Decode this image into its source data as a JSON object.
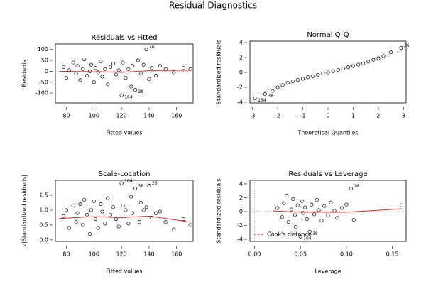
{
  "title": "Residual Diagnostics",
  "chart_data": [
    {
      "type": "scatter",
      "title": "Residuals vs Fitted",
      "x_label": "Fitted values",
      "y_label": "Residuals",
      "xlim": [
        72,
        172
      ],
      "ylim": [
        -145,
        125
      ],
      "xticks": [
        80,
        100,
        120,
        140,
        160
      ],
      "yticks": [
        -100,
        -50,
        0,
        50,
        100
      ],
      "hlines": [
        0
      ],
      "x": [
        78,
        80,
        82,
        85,
        87,
        88,
        90,
        92,
        93,
        95,
        97,
        98,
        100,
        101,
        103,
        105,
        106,
        108,
        110,
        112,
        114,
        116,
        118,
        120,
        121,
        123,
        125,
        127,
        128,
        130,
        132,
        134,
        138,
        136,
        140,
        142,
        145,
        148,
        152,
        158,
        165,
        170
      ],
      "y": [
        20,
        -30,
        5,
        40,
        -10,
        25,
        -40,
        10,
        55,
        -20,
        0,
        30,
        -50,
        15,
        -5,
        45,
        -25,
        10,
        -60,
        20,
        35,
        -15,
        5,
        -110,
        40,
        -30,
        10,
        -70,
        25,
        -85,
        50,
        -10,
        100,
        30,
        -35,
        15,
        -20,
        25,
        10,
        -5,
        15,
        10
      ],
      "lowess": {
        "x": [
          75,
          100,
          120,
          140,
          170
        ],
        "y": [
          0,
          -2,
          -5,
          3,
          5
        ]
      },
      "annotations": [
        {
          "text": "26",
          "x": 138,
          "y": 100
        },
        {
          "text": "164",
          "x": 120,
          "y": -110
        },
        {
          "text": "38",
          "x": 130,
          "y": -85
        }
      ]
    },
    {
      "type": "scatter",
      "title": "Normal Q-Q",
      "x_label": "Theoretical Quantiles",
      "y_label": "Standardized residuals",
      "xlim": [
        -3.1,
        3.1
      ],
      "ylim": [
        -4.1,
        4.2
      ],
      "xticks": [
        -3,
        -2,
        -1,
        0,
        1,
        2,
        3
      ],
      "yticks": [
        -4,
        -2,
        0,
        2,
        4
      ],
      "x": [
        -2.9,
        -2.5,
        -2.2,
        -2.0,
        -1.8,
        -1.6,
        -1.4,
        -1.2,
        -1.0,
        -0.8,
        -0.6,
        -0.4,
        -0.2,
        0,
        0.2,
        0.4,
        0.6,
        0.8,
        1.0,
        1.2,
        1.4,
        1.6,
        1.8,
        2.0,
        2.2,
        2.5,
        2.9
      ],
      "y": [
        -3.5,
        -2.9,
        -2.5,
        -2.0,
        -1.7,
        -1.4,
        -1.2,
        -1.0,
        -0.85,
        -0.65,
        -0.5,
        -0.33,
        -0.15,
        0,
        0.17,
        0.35,
        0.52,
        0.7,
        0.85,
        1.05,
        1.2,
        1.45,
        1.7,
        1.9,
        2.2,
        2.7,
        3.3
      ],
      "ref_line": {
        "x": [
          -3.1,
          3.1
        ],
        "y": [
          -3.1,
          3.1
        ]
      },
      "annotations": [
        {
          "text": "26",
          "x": 2.9,
          "y": 3.3
        },
        {
          "text": "164",
          "x": -2.9,
          "y": -3.5
        },
        {
          "text": "38",
          "x": -2.5,
          "y": -2.9
        }
      ]
    },
    {
      "type": "scatter",
      "title": "Scale-Location",
      "x_label": "Fitted values",
      "y_label": "√|Standardized residuals|",
      "xlim": [
        72,
        172
      ],
      "ylim": [
        -0.05,
        2.0
      ],
      "xticks": [
        80,
        100,
        120,
        140,
        160
      ],
      "yticks": [
        {
          "value": 0,
          "label": "0.0"
        },
        {
          "value": 0.5,
          "label": "0.5"
        },
        {
          "value": 1,
          "label": "1.0"
        },
        {
          "value": 1.5,
          "label": "1.5"
        }
      ],
      "x": [
        78,
        80,
        82,
        85,
        87,
        88,
        90,
        92,
        93,
        95,
        97,
        98,
        100,
        101,
        103,
        105,
        106,
        108,
        110,
        112,
        114,
        116,
        118,
        120,
        121,
        123,
        125,
        127,
        128,
        130,
        133,
        134,
        140,
        136,
        138,
        142,
        145,
        148,
        152,
        158,
        165,
        170
      ],
      "y": [
        0.8,
        1.0,
        0.4,
        1.15,
        0.6,
        0.9,
        1.2,
        0.5,
        1.35,
        0.85,
        0.2,
        1.0,
        1.3,
        0.7,
        0.4,
        1.2,
        0.95,
        0.55,
        1.4,
        0.85,
        1.1,
        0.7,
        0.45,
        1.9,
        1.15,
        1.0,
        0.55,
        1.45,
        0.9,
        1.72,
        0.6,
        1.25,
        1.82,
        1.0,
        1.1,
        0.75,
        0.9,
        0.95,
        0.6,
        0.35,
        0.7,
        0.5
      ],
      "lowess": {
        "x": [
          75,
          100,
          120,
          140,
          170
        ],
        "y": [
          0.72,
          0.78,
          0.75,
          0.8,
          0.6
        ]
      },
      "annotations": [
        {
          "text": "164",
          "x": 120,
          "y": 1.9
        },
        {
          "text": "38",
          "x": 130,
          "y": 1.72
        },
        {
          "text": "26",
          "x": 140,
          "y": 1.82
        }
      ]
    },
    {
      "type": "scatter",
      "title": "Residuals vs Leverage",
      "x_label": "Leverage",
      "y_label": "Standardized residuals",
      "xlim": [
        -0.005,
        0.165
      ],
      "ylim": [
        -4.3,
        4.5
      ],
      "xticks": [
        {
          "value": 0,
          "label": "0.00"
        },
        {
          "value": 0.05,
          "label": "0.05"
        },
        {
          "value": 0.1,
          "label": "0.10"
        },
        {
          "value": 0.15,
          "label": "0.15"
        }
      ],
      "yticks": [
        -4,
        -2,
        0,
        2,
        4
      ],
      "hlines": [
        0
      ],
      "vlines": [
        0
      ],
      "x": [
        0.025,
        0.03,
        0.032,
        0.035,
        0.037,
        0.04,
        0.042,
        0.044,
        0.045,
        0.047,
        0.05,
        0.052,
        0.053,
        0.055,
        0.057,
        0.06,
        0.062,
        0.065,
        0.068,
        0.07,
        0.073,
        0.076,
        0.08,
        0.083,
        0.087,
        0.09,
        0.095,
        0.1,
        0.105,
        0.108,
        0.16
      ],
      "y": [
        0.5,
        -0.8,
        1.2,
        2.3,
        -1.5,
        0.3,
        1.8,
        -0.5,
        -2.2,
        0.9,
        -3.6,
        1.5,
        -0.2,
        0.6,
        -1.1,
        -2.9,
        1.0,
        -0.4,
        1.7,
        0.2,
        -1.3,
        0.8,
        -0.6,
        1.3,
        0.1,
        -0.9,
        0.5,
        1.0,
        3.3,
        -1.2,
        0.9
      ],
      "lowess": {
        "x": [
          0.02,
          0.05,
          0.1,
          0.16
        ],
        "y": [
          0.1,
          -0.1,
          -0.1,
          0.4
        ]
      },
      "legend_label": "Cook's distance",
      "annotations": [
        {
          "text": "26",
          "x": 0.105,
          "y": 3.3
        },
        {
          "text": "164",
          "x": 0.05,
          "y": -3.6
        },
        {
          "text": "38",
          "x": 0.06,
          "y": -2.9
        }
      ]
    }
  ]
}
